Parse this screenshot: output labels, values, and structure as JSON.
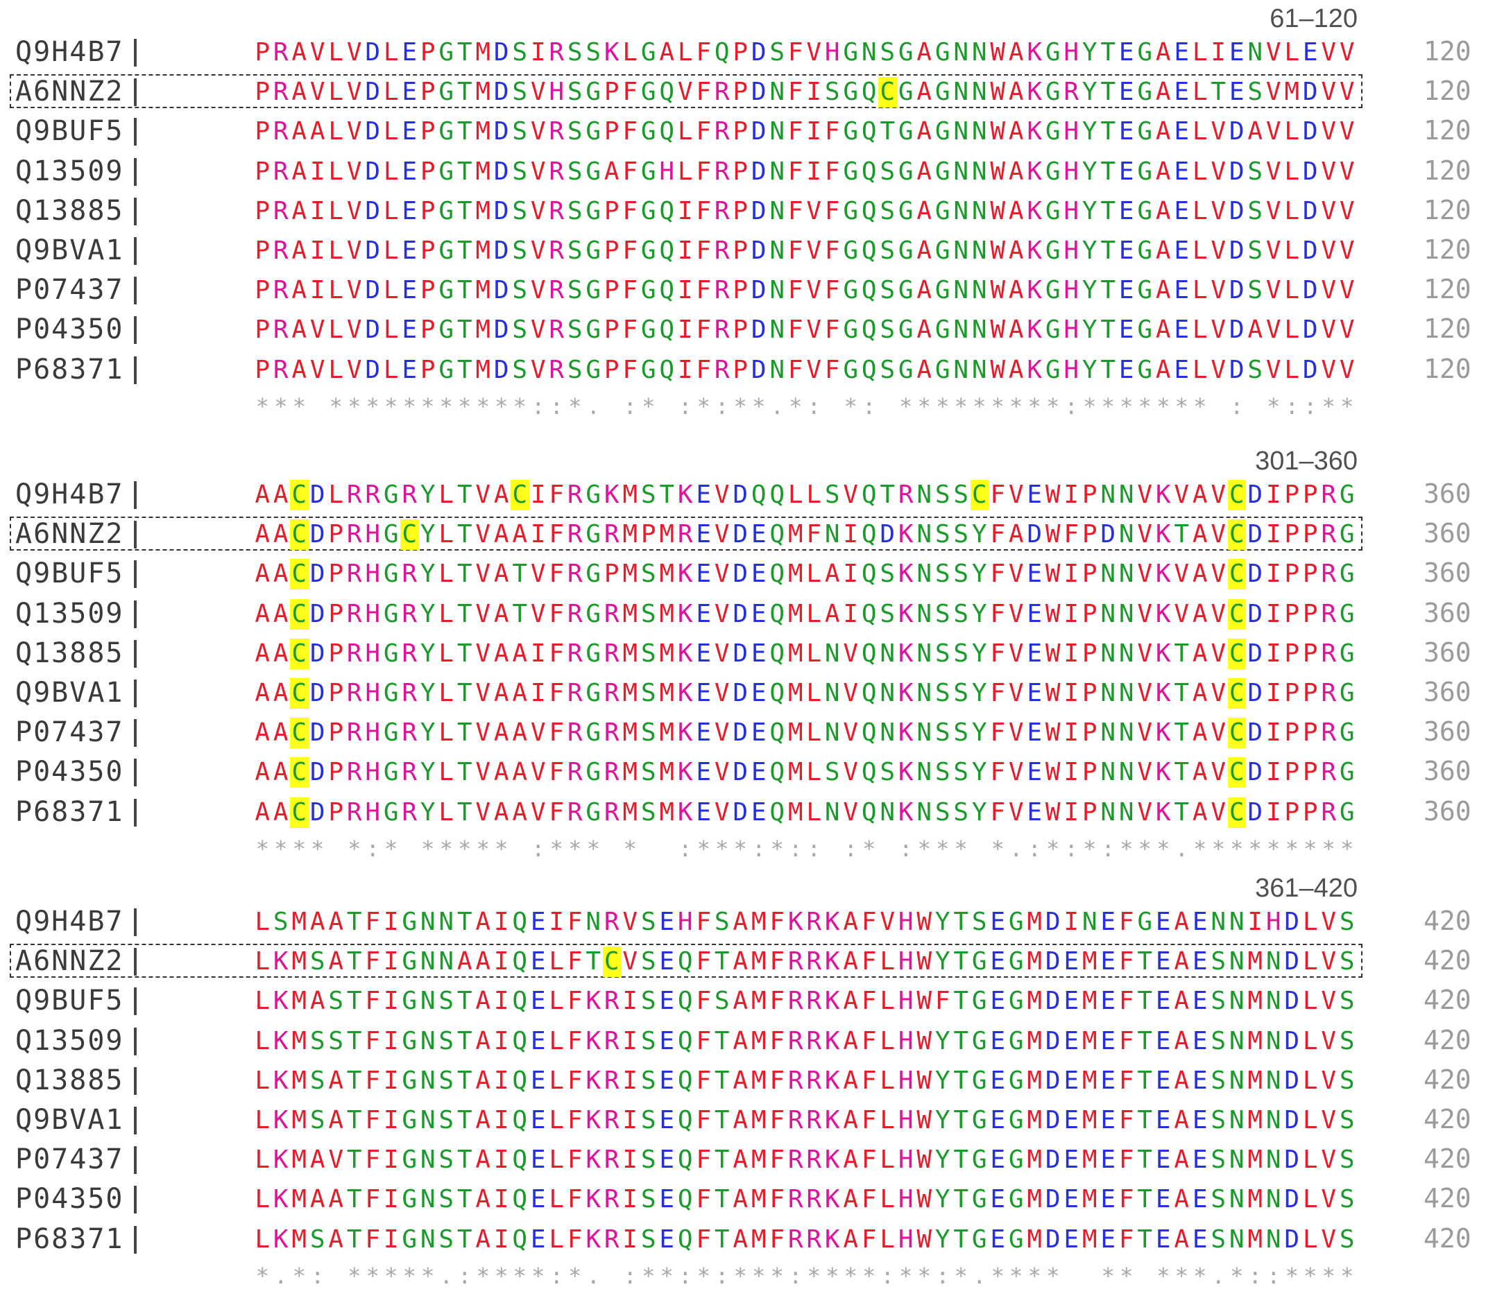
{
  "blocks": [
    {
      "range": "61–120",
      "end": "120",
      "rows": [
        {
          "acc": "Q9H4B7",
          "seq": "PRAVLVDLEPGTMDSIRSSKLGALFQPDSFVHGNSGAGNNWAKGHYTEGAELIENVLEVV",
          "ref": false,
          "hl": []
        },
        {
          "acc": "A6NNZ2",
          "seq": "PRAVLVDLEPGTMDSVHSGPFGQVFRPDNFISGQCGAGNNWAKGRYTEGAELTESVMDVV",
          "ref": true,
          "hl": [
            34
          ]
        },
        {
          "acc": "Q9BUF5",
          "seq": "PRAALVDLEPGTMDSVRSGPFGQLFRPDNFIFGQTGAGNNWAKGHYTEGAELVDAVLDVV",
          "ref": false,
          "hl": []
        },
        {
          "acc": "Q13509",
          "seq": "PRAILVDLEPGTMDSVRSGAFGHLFRPDNFIFGQSGAGNNWAKGHYTEGAELVDSVLDVV",
          "ref": false,
          "hl": []
        },
        {
          "acc": "Q13885",
          "seq": "PRAILVDLEPGTMDSVRSGPFGQIFRPDNFVFGQSGAGNNWAKGHYTEGAELVDSVLDVV",
          "ref": false,
          "hl": []
        },
        {
          "acc": "Q9BVA1",
          "seq": "PRAILVDLEPGTMDSVRSGPFGQIFRPDNFVFGQSGAGNNWAKGHYTEGAELVDSVLDVV",
          "ref": false,
          "hl": []
        },
        {
          "acc": "P07437",
          "seq": "PRAILVDLEPGTMDSVRSGPFGQIFRPDNFVFGQSGAGNNWAKGHYTEGAELVDSVLDVV",
          "ref": false,
          "hl": []
        },
        {
          "acc": "P04350",
          "seq": "PRAVLVDLEPGTMDSVRSGPFGQIFRPDNFVFGQSGAGNNWAKGHYTEGAELVDAVLDVV",
          "ref": false,
          "hl": []
        },
        {
          "acc": "P68371",
          "seq": "PRAVLVDLEPGTMDSVRSGPFGQIFRPDNFVFGQSGAGNNWAKGHYTEGAELVDSVLDVV",
          "ref": false,
          "hl": []
        }
      ],
      "cons": "*** ***********::*. :* :*:**.*: *: *********:******* : *::**"
    },
    {
      "range": "301–360",
      "end": "360",
      "rows": [
        {
          "acc": "Q9H4B7",
          "seq": "AACDLRRGRYLTVACIFRGKMSTKEVDQQLLSVQTRNSSCFVEWIPNNVKVAVCDIPPRG",
          "ref": false,
          "hl": [
            2,
            14,
            39,
            53
          ]
        },
        {
          "acc": "A6NNZ2",
          "seq": "AACDPRHGCYLTVAAIFRGRMPMREVDEQMFNIQDKNSSYFADWFPDNVKTAVCDIPPRG",
          "ref": true,
          "hl": [
            2,
            8,
            53
          ]
        },
        {
          "acc": "Q9BUF5",
          "seq": "AACDPRHGRYLTVATVFRGPMSMKEVDEQMLAIQSKNSSYFVEWIPNNVKVAVCDIPPRG",
          "ref": false,
          "hl": [
            2,
            53
          ]
        },
        {
          "acc": "Q13509",
          "seq": "AACDPRHGRYLTVATVFRGRMSMKEVDEQMLAIQSKNSSYFVEWIPNNVKVAVCDIPPRG",
          "ref": false,
          "hl": [
            2,
            53
          ]
        },
        {
          "acc": "Q13885",
          "seq": "AACDPRHGRYLTVAAIFRGRMSMKEVDEQMLNVQNKNSSYFVEWIPNNVKTAVCDIPPRG",
          "ref": false,
          "hl": [
            2,
            53
          ]
        },
        {
          "acc": "Q9BVA1",
          "seq": "AACDPRHGRYLTVAAIFRGRMSMKEVDEQMLNVQNKNSSYFVEWIPNNVKTAVCDIPPRG",
          "ref": false,
          "hl": [
            2,
            53
          ]
        },
        {
          "acc": "P07437",
          "seq": "AACDPRHGRYLTVAAVFRGRMSMKEVDEQMLNVQNKNSSYFVEWIPNNVKTAVCDIPPRG",
          "ref": false,
          "hl": [
            2,
            53
          ]
        },
        {
          "acc": "P04350",
          "seq": "AACDPRHGRYLTVAAVFRGRMSMKEVDEQMLSVQSKNSSYFVEWIPNNVKTAVCDIPPRG",
          "ref": false,
          "hl": [
            2,
            53
          ]
        },
        {
          "acc": "P68371",
          "seq": "AACDPRHGRYLTVAAVFRGRMSMKEVDEQMLNVQNKNSSYFVEWIPNNVKTAVCDIPPRG",
          "ref": false,
          "hl": [
            2,
            53
          ]
        }
      ],
      "cons": "**** *:* ***** :*** *  :***:*:: :* :*** *.:*:*:***.*********"
    },
    {
      "range": "361–420",
      "end": "420",
      "rows": [
        {
          "acc": "Q9H4B7",
          "seq": "LSMAATFIGNNTAIQEIFNRVSEHFSAMFKRKAFVHWYTSEGMDINEFGEAENNIHDLVS",
          "ref": false,
          "hl": []
        },
        {
          "acc": "A6NNZ2",
          "seq": "LKMSATFIGNNAAIQELFTCVSEQFTAMFRRKAFLHWYTGEGMDEMEFTEAESNMNDLVS",
          "ref": true,
          "hl": [
            19
          ]
        },
        {
          "acc": "Q9BUF5",
          "seq": "LKMASTFIGNSTAIQELFKRISEQFSAMFRRKAFLHWFTGEGMDEMEFTEAESNMNDLVS",
          "ref": false,
          "hl": []
        },
        {
          "acc": "Q13509",
          "seq": "LKMSSTFIGNSTAIQELFKRISEQFTAMFRRKAFLHWYTGEGMDEMEFTEAESNMNDLVS",
          "ref": false,
          "hl": []
        },
        {
          "acc": "Q13885",
          "seq": "LKMSATFIGNSTAIQELFKRISEQFTAMFRRKAFLHWYTGEGMDEMEFTEAESNMNDLVS",
          "ref": false,
          "hl": []
        },
        {
          "acc": "Q9BVA1",
          "seq": "LKMSATFIGNSTAIQELFKRISEQFTAMFRRKAFLHWYTGEGMDEMEFTEAESNMNDLVS",
          "ref": false,
          "hl": []
        },
        {
          "acc": "P07437",
          "seq": "LKMAVTFIGNSTAIQELFKRISEQFTAMFRRKAFLHWYTGEGMDEMEFTEAESNMNDLVS",
          "ref": false,
          "hl": []
        },
        {
          "acc": "P04350",
          "seq": "LKMAATFIGNSTAIQELFKRISEQFTAMFRRKAFLHWYTGEGMDEMEFTEAESNMNDLVS",
          "ref": false,
          "hl": []
        },
        {
          "acc": "P68371",
          "seq": "LKMSATFIGNSTAIQELFKRISEQFTAMFRRKAFLHWYTGEGMDEMEFTEAESNMNDLVS",
          "ref": false,
          "hl": []
        }
      ],
      "cons": "*.*: *****.:****:*. :**:*:***:****:**:*.****  ** ***.*::****"
    }
  ],
  "colors": {
    "basic": "#e0129c",
    "acidic": "#2430e0",
    "hydrophobic": "#e81c28",
    "polar": "#1a9a2a",
    "highlight": "#ffff1a"
  }
}
